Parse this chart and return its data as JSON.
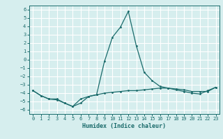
{
  "xlabel": "Humidex (Indice chaleur)",
  "ylabel": "",
  "background_color": "#d6eeee",
  "grid_color": "#ffffff",
  "line_color": "#1a6b6b",
  "xlim": [
    -0.5,
    23.5
  ],
  "ylim": [
    -6.5,
    6.5
  ],
  "xticks": [
    0,
    1,
    2,
    3,
    4,
    5,
    6,
    7,
    8,
    9,
    10,
    11,
    12,
    13,
    14,
    15,
    16,
    17,
    18,
    19,
    20,
    21,
    22,
    23
  ],
  "yticks": [
    -6,
    -5,
    -4,
    -3,
    -2,
    -1,
    0,
    1,
    2,
    3,
    4,
    5,
    6
  ],
  "series1_x": [
    0,
    1,
    2,
    3,
    4,
    5,
    6,
    7,
    8,
    9,
    10,
    11,
    12,
    13,
    14,
    15,
    16,
    17,
    18,
    19,
    20,
    21,
    22,
    23
  ],
  "series1_y": [
    -3.7,
    -4.3,
    -4.7,
    -4.7,
    -5.2,
    -5.6,
    -4.7,
    -4.4,
    -4.2,
    -0.2,
    2.7,
    3.9,
    5.8,
    1.7,
    -1.5,
    -2.5,
    -3.2,
    -3.4,
    -3.6,
    -3.8,
    -4.0,
    -4.1,
    -3.7,
    -3.3
  ],
  "series2_x": [
    0,
    1,
    2,
    3,
    4,
    5,
    6,
    7,
    8,
    9,
    10,
    11,
    12,
    13,
    14,
    15,
    16,
    17,
    18,
    19,
    20,
    21,
    22,
    23
  ],
  "series2_y": [
    -3.7,
    -4.3,
    -4.7,
    -4.8,
    -5.2,
    -5.6,
    -5.2,
    -4.4,
    -4.2,
    -4.0,
    -3.9,
    -3.8,
    -3.7,
    -3.7,
    -3.6,
    -3.5,
    -3.4,
    -3.4,
    -3.5,
    -3.6,
    -3.8,
    -3.8,
    -3.8,
    -3.3
  ]
}
